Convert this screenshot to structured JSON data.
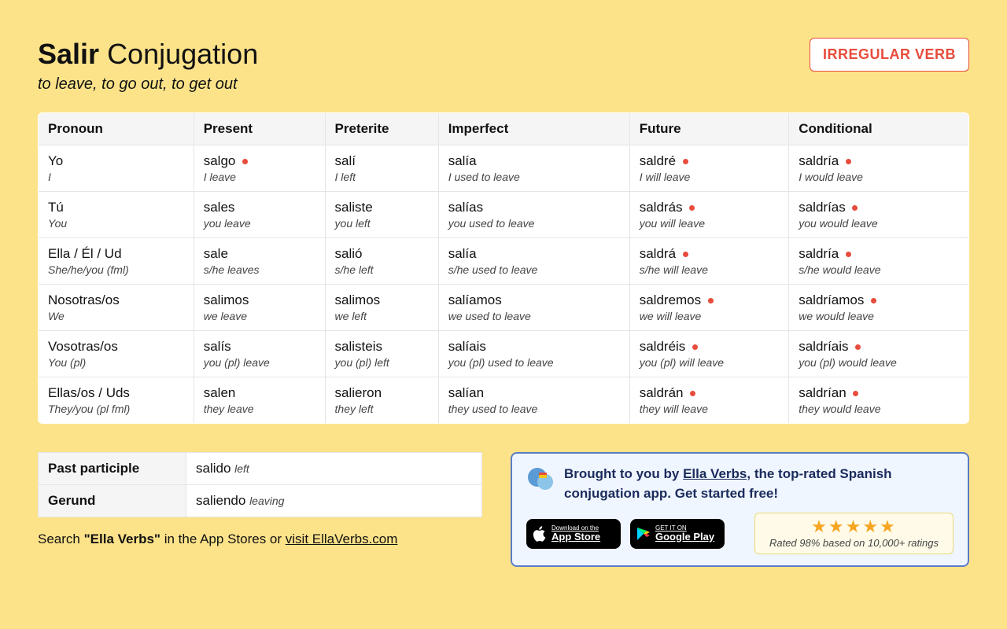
{
  "header": {
    "verb": "Salir",
    "title_rest": "Conjugation",
    "subtitle": "to leave, to go out, to get out",
    "badge": "IRREGULAR VERB"
  },
  "table": {
    "columns": [
      "Pronoun",
      "Present",
      "Preterite",
      "Imperfect",
      "Future",
      "Conditional"
    ],
    "rows": [
      {
        "pronoun": {
          "main": "Yo",
          "sub": "I"
        },
        "cells": [
          {
            "main": "salgo",
            "sub": "I leave",
            "dot": true
          },
          {
            "main": "salí",
            "sub": "I left",
            "dot": false
          },
          {
            "main": "salía",
            "sub": "I used to leave",
            "dot": false
          },
          {
            "main": "saldré",
            "sub": "I will leave",
            "dot": true
          },
          {
            "main": "saldría",
            "sub": "I would leave",
            "dot": true
          }
        ]
      },
      {
        "pronoun": {
          "main": "Tú",
          "sub": "You"
        },
        "cells": [
          {
            "main": "sales",
            "sub": "you leave",
            "dot": false
          },
          {
            "main": "saliste",
            "sub": "you left",
            "dot": false
          },
          {
            "main": "salías",
            "sub": "you used to leave",
            "dot": false
          },
          {
            "main": "saldrás",
            "sub": "you will leave",
            "dot": true
          },
          {
            "main": "saldrías",
            "sub": "you would leave",
            "dot": true
          }
        ]
      },
      {
        "pronoun": {
          "main": "Ella / Él / Ud",
          "sub": "She/he/you (fml)"
        },
        "cells": [
          {
            "main": "sale",
            "sub": "s/he leaves",
            "dot": false
          },
          {
            "main": "salió",
            "sub": "s/he left",
            "dot": false
          },
          {
            "main": "salía",
            "sub": "s/he used to leave",
            "dot": false
          },
          {
            "main": "saldrá",
            "sub": "s/he will leave",
            "dot": true
          },
          {
            "main": "saldría",
            "sub": "s/he would leave",
            "dot": true
          }
        ]
      },
      {
        "pronoun": {
          "main": "Nosotras/os",
          "sub": "We"
        },
        "cells": [
          {
            "main": "salimos",
            "sub": "we leave",
            "dot": false
          },
          {
            "main": "salimos",
            "sub": "we left",
            "dot": false
          },
          {
            "main": "salíamos",
            "sub": "we used to leave",
            "dot": false
          },
          {
            "main": "saldremos",
            "sub": "we will leave",
            "dot": true
          },
          {
            "main": "saldríamos",
            "sub": "we would leave",
            "dot": true
          }
        ]
      },
      {
        "pronoun": {
          "main": "Vosotras/os",
          "sub": "You (pl)"
        },
        "cells": [
          {
            "main": "salís",
            "sub": "you (pl) leave",
            "dot": false
          },
          {
            "main": "salisteis",
            "sub": "you (pl) left",
            "dot": false
          },
          {
            "main": "salíais",
            "sub": "you (pl) used to leave",
            "dot": false
          },
          {
            "main": "saldréis",
            "sub": "you (pl) will leave",
            "dot": true
          },
          {
            "main": "saldríais",
            "sub": "you (pl) would leave",
            "dot": true
          }
        ]
      },
      {
        "pronoun": {
          "main": "Ellas/os / Uds",
          "sub": "They/you (pl fml)"
        },
        "cells": [
          {
            "main": "salen",
            "sub": "they leave",
            "dot": false
          },
          {
            "main": "salieron",
            "sub": "they left",
            "dot": false
          },
          {
            "main": "salían",
            "sub": "they used to leave",
            "dot": false
          },
          {
            "main": "saldrán",
            "sub": "they will leave",
            "dot": true
          },
          {
            "main": "saldrían",
            "sub": "they would leave",
            "dot": true
          }
        ]
      }
    ]
  },
  "participles": {
    "rows": [
      {
        "label": "Past participle",
        "main": "salido",
        "sub": "left"
      },
      {
        "label": "Gerund",
        "main": "saliendo",
        "sub": "leaving"
      }
    ]
  },
  "search": {
    "prefix": "Search ",
    "quoted": "\"Ella Verbs\"",
    "middle": " in the App Stores or ",
    "link": "visit EllaVerbs.com"
  },
  "promo": {
    "text_before": "Brought to you by ",
    "link": "Ella Verbs",
    "text_after": ", the top-rated Spanish conjugation app. Get started free!",
    "appstore_small": "Download on the",
    "appstore_big": "App Store",
    "play_small": "GET IT ON",
    "play_big": "Google Play",
    "stars": "★★★★★",
    "rating_text": "Rated 98% based on 10,000+ ratings"
  }
}
